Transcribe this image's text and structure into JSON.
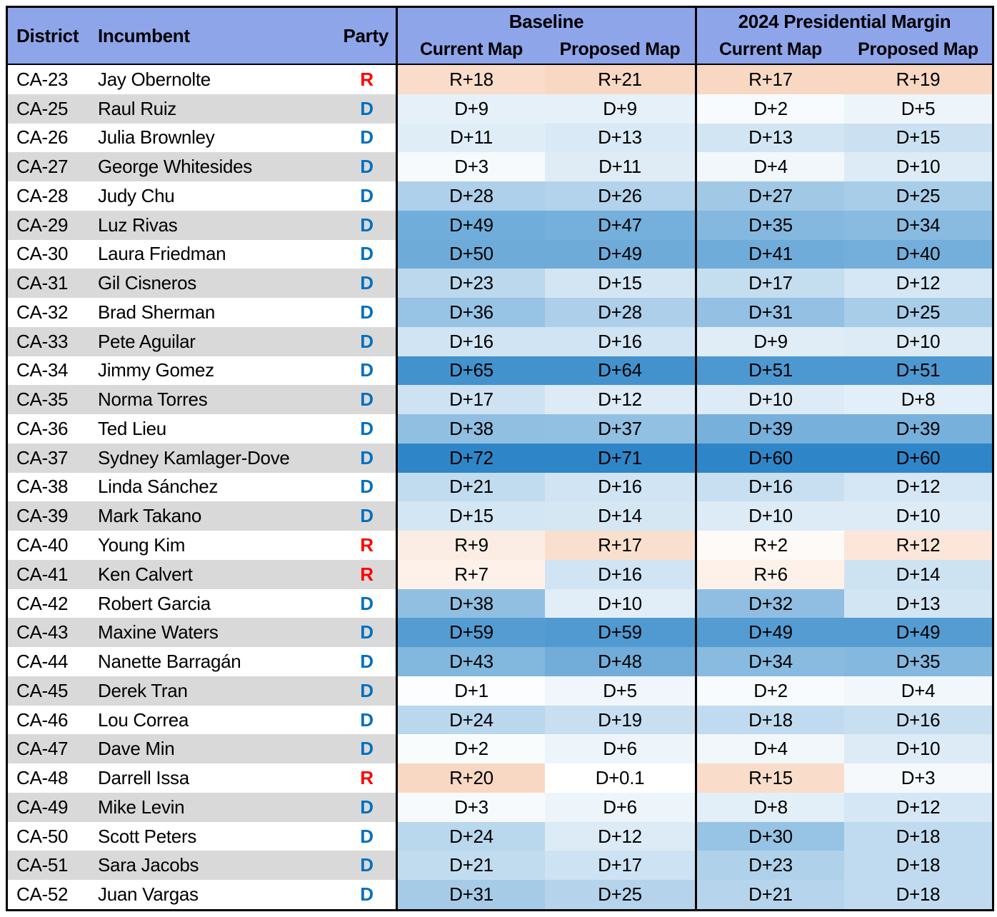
{
  "colors": {
    "header_bg": "#8EA5EA",
    "row_gray": "#D9D9D9",
    "row_white": "#FFFFFF",
    "dem_text": "#0070C0",
    "rep_text": "#FF0000",
    "dem_scale_max": "#2E86C8",
    "rep_scale_max": "#F8D8C3",
    "cell_scale_min": "#FFFFFF",
    "border": "#000000",
    "text": "#000000"
  },
  "chart_data": {
    "type": "table",
    "header": {
      "district": "District",
      "incumbent": "Incumbent",
      "party": "Party",
      "groups": [
        {
          "label": "Baseline",
          "cols": [
            "Current Map",
            "Proposed Map"
          ]
        },
        {
          "label": "2024 Presidential Margin",
          "cols": [
            "Current Map",
            "Proposed Map"
          ]
        }
      ]
    },
    "rows": [
      {
        "district": "CA-23",
        "incumbent": "Jay Obernolte",
        "party": "R",
        "margins": [
          "R+18",
          "R+21",
          "R+17",
          "R+19"
        ]
      },
      {
        "district": "CA-25",
        "incumbent": "Raul Ruiz",
        "party": "D",
        "margins": [
          "D+9",
          "D+9",
          "D+2",
          "D+5"
        ]
      },
      {
        "district": "CA-26",
        "incumbent": "Julia Brownley",
        "party": "D",
        "margins": [
          "D+11",
          "D+13",
          "D+13",
          "D+15"
        ]
      },
      {
        "district": "CA-27",
        "incumbent": "George Whitesides",
        "party": "D",
        "margins": [
          "D+3",
          "D+11",
          "D+4",
          "D+10"
        ]
      },
      {
        "district": "CA-28",
        "incumbent": "Judy Chu",
        "party": "D",
        "margins": [
          "D+28",
          "D+26",
          "D+27",
          "D+25"
        ]
      },
      {
        "district": "CA-29",
        "incumbent": "Luz Rivas",
        "party": "D",
        "margins": [
          "D+49",
          "D+47",
          "D+35",
          "D+34"
        ]
      },
      {
        "district": "CA-30",
        "incumbent": "Laura Friedman",
        "party": "D",
        "margins": [
          "D+50",
          "D+49",
          "D+41",
          "D+40"
        ]
      },
      {
        "district": "CA-31",
        "incumbent": "Gil Cisneros",
        "party": "D",
        "margins": [
          "D+23",
          "D+15",
          "D+17",
          "D+12"
        ]
      },
      {
        "district": "CA-32",
        "incumbent": "Brad Sherman",
        "party": "D",
        "margins": [
          "D+36",
          "D+28",
          "D+31",
          "D+25"
        ]
      },
      {
        "district": "CA-33",
        "incumbent": "Pete Aguilar",
        "party": "D",
        "margins": [
          "D+16",
          "D+16",
          "D+9",
          "D+10"
        ]
      },
      {
        "district": "CA-34",
        "incumbent": "Jimmy Gomez",
        "party": "D",
        "margins": [
          "D+65",
          "D+64",
          "D+51",
          "D+51"
        ]
      },
      {
        "district": "CA-35",
        "incumbent": "Norma Torres",
        "party": "D",
        "margins": [
          "D+17",
          "D+12",
          "D+10",
          "D+8"
        ]
      },
      {
        "district": "CA-36",
        "incumbent": "Ted Lieu",
        "party": "D",
        "margins": [
          "D+38",
          "D+37",
          "D+39",
          "D+39"
        ]
      },
      {
        "district": "CA-37",
        "incumbent": "Sydney Kamlager-Dove",
        "party": "D",
        "margins": [
          "D+72",
          "D+71",
          "D+60",
          "D+60"
        ]
      },
      {
        "district": "CA-38",
        "incumbent": "Linda Sánchez",
        "party": "D",
        "margins": [
          "D+21",
          "D+16",
          "D+16",
          "D+12"
        ]
      },
      {
        "district": "CA-39",
        "incumbent": "Mark Takano",
        "party": "D",
        "margins": [
          "D+15",
          "D+14",
          "D+10",
          "D+10"
        ]
      },
      {
        "district": "CA-40",
        "incumbent": "Young Kim",
        "party": "R",
        "margins": [
          "R+9",
          "R+17",
          "R+2",
          "R+12"
        ]
      },
      {
        "district": "CA-41",
        "incumbent": "Ken Calvert",
        "party": "R",
        "margins": [
          "R+7",
          "D+16",
          "R+6",
          "D+14"
        ]
      },
      {
        "district": "CA-42",
        "incumbent": "Robert Garcia",
        "party": "D",
        "margins": [
          "D+38",
          "D+10",
          "D+32",
          "D+13"
        ]
      },
      {
        "district": "CA-43",
        "incumbent": "Maxine Waters",
        "party": "D",
        "margins": [
          "D+59",
          "D+59",
          "D+49",
          "D+49"
        ]
      },
      {
        "district": "CA-44",
        "incumbent": "Nanette Barragán",
        "party": "D",
        "margins": [
          "D+43",
          "D+48",
          "D+34",
          "D+35"
        ]
      },
      {
        "district": "CA-45",
        "incumbent": "Derek Tran",
        "party": "D",
        "margins": [
          "D+1",
          "D+5",
          "D+2",
          "D+4"
        ]
      },
      {
        "district": "CA-46",
        "incumbent": "Lou Correa",
        "party": "D",
        "margins": [
          "D+24",
          "D+19",
          "D+18",
          "D+16"
        ]
      },
      {
        "district": "CA-47",
        "incumbent": "Dave Min",
        "party": "D",
        "margins": [
          "D+2",
          "D+6",
          "D+4",
          "D+10"
        ]
      },
      {
        "district": "CA-48",
        "incumbent": "Darrell Issa",
        "party": "R",
        "margins": [
          "R+20",
          "D+0.1",
          "R+15",
          "D+3"
        ]
      },
      {
        "district": "CA-49",
        "incumbent": "Mike Levin",
        "party": "D",
        "margins": [
          "D+3",
          "D+6",
          "D+8",
          "D+12"
        ]
      },
      {
        "district": "CA-50",
        "incumbent": "Scott Peters",
        "party": "D",
        "margins": [
          "D+24",
          "D+12",
          "D+30",
          "D+18"
        ]
      },
      {
        "district": "CA-51",
        "incumbent": "Sara Jacobs",
        "party": "D",
        "margins": [
          "D+21",
          "D+17",
          "D+23",
          "D+18"
        ]
      },
      {
        "district": "CA-52",
        "incumbent": "Juan Vargas",
        "party": "D",
        "margins": [
          "D+31",
          "D+25",
          "D+21",
          "D+18"
        ]
      }
    ]
  }
}
